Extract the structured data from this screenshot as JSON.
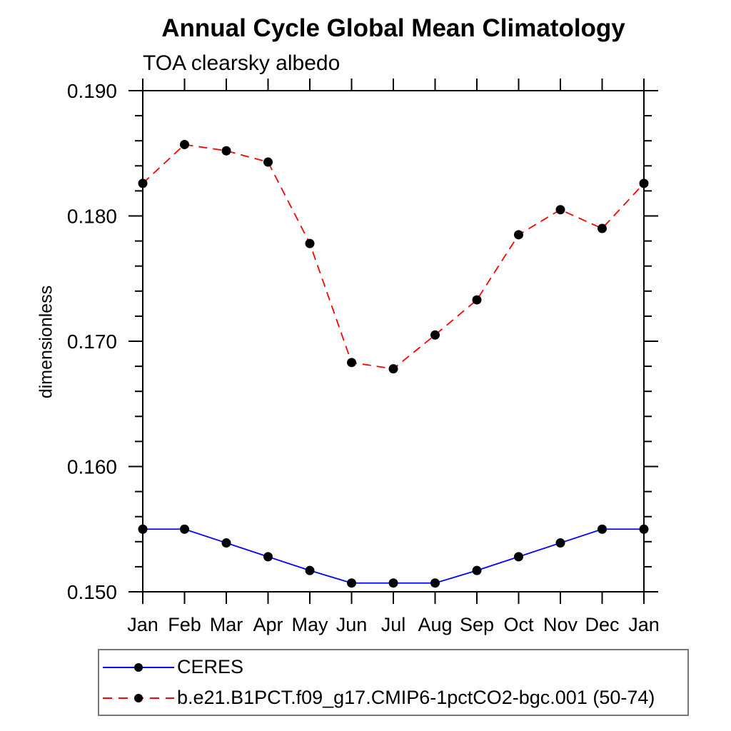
{
  "chart_data": {
    "type": "line",
    "title": "Annual Cycle Global Mean Climatology",
    "subtitle": "TOA clearsky albedo",
    "xlabel": "",
    "ylabel": "dimensionless",
    "categories": [
      "Jan",
      "Feb",
      "Mar",
      "Apr",
      "May",
      "Jun",
      "Jul",
      "Aug",
      "Sep",
      "Oct",
      "Nov",
      "Dec",
      "Jan"
    ],
    "series": [
      {
        "name": "CERES",
        "color": "#0000ff",
        "line_style": "solid",
        "marker": "circle",
        "marker_color": "#000000",
        "values": [
          0.155,
          0.155,
          0.1539,
          0.1528,
          0.1517,
          0.1507,
          0.1507,
          0.1507,
          0.1517,
          0.1528,
          0.1539,
          0.155,
          0.155
        ]
      },
      {
        "name": "b.e21.B1PCT.f09_g17.CMIP6-1pctCO2-bgc.001 (50-74)",
        "color": "#ff0000",
        "line_style": "dashed",
        "marker": "circle",
        "marker_color": "#000000",
        "values": [
          0.1826,
          0.1857,
          0.1852,
          0.1843,
          0.1778,
          0.1683,
          0.1678,
          0.1705,
          0.1733,
          0.1785,
          0.1805,
          0.179,
          0.1826
        ]
      }
    ],
    "ylim": [
      0.15,
      0.19
    ],
    "yticks": {
      "values": [
        0.15,
        0.16,
        0.17,
        0.18,
        0.19
      ],
      "labels": [
        "0.150",
        "0.160",
        "0.170",
        "0.180",
        "0.190"
      ],
      "minor_step": 0.002
    },
    "grid": false,
    "axis_color": "#000000",
    "legend_position": "bottom-left"
  }
}
